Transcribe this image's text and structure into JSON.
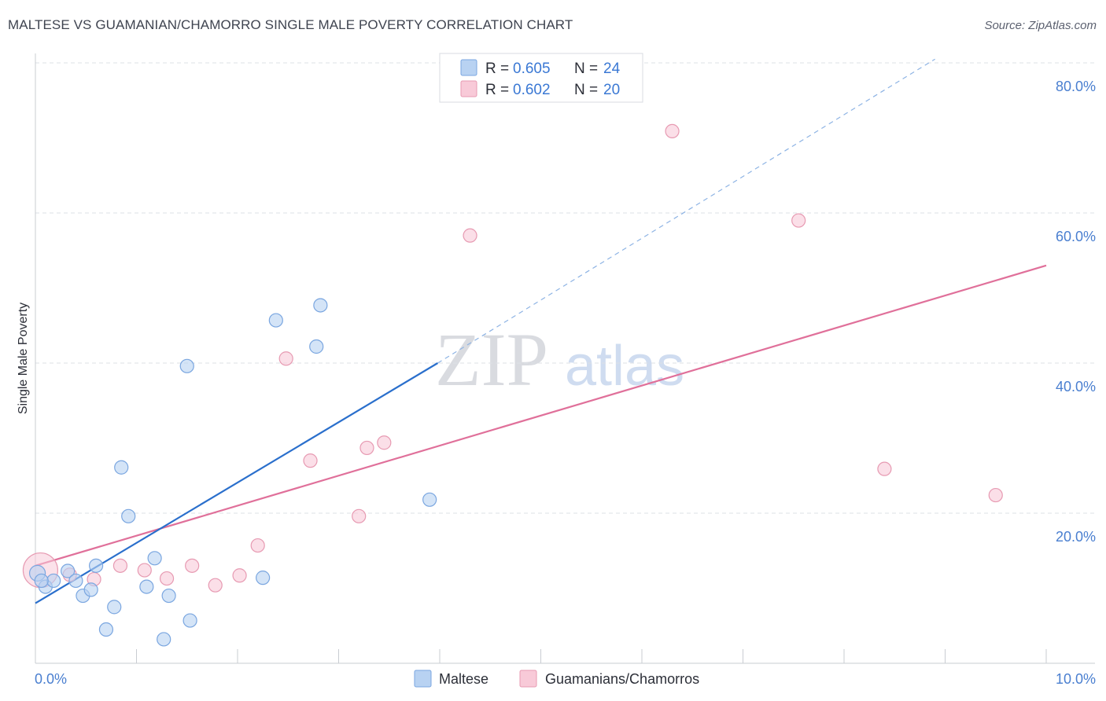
{
  "header": {
    "title": "MALTESE VS GUAMANIAN/CHAMORRO SINGLE MALE POVERTY CORRELATION CHART",
    "source": "Source: ZipAtlas.com"
  },
  "watermark": {
    "zip": "ZIP",
    "atlas": "atlas"
  },
  "colors": {
    "blue_fill": "#b8d2f2",
    "blue_stroke": "#7aa6e0",
    "blue_line": "#2a6fcc",
    "pink_fill": "#f8cad8",
    "pink_stroke": "#e79ab2",
    "pink_line": "#e0709a",
    "grid": "#dde0e6",
    "tick_label": "#4a7fd0"
  },
  "chart_data": {
    "type": "scatter",
    "title": "MALTESE VS GUAMANIAN/CHAMORRO SINGLE MALE POVERTY CORRELATION CHART",
    "xlabel": "",
    "ylabel": "Single Male Poverty",
    "xlim": [
      0,
      10
    ],
    "ylim": [
      -2,
      84
    ],
    "x_tick_labels": [
      {
        "value": 0,
        "label": "0.0%"
      },
      {
        "value": 10,
        "label": "10.0%"
      }
    ],
    "y_tick_labels": [
      {
        "value": 20,
        "label": "20.0%"
      },
      {
        "value": 40,
        "label": "40.0%"
      },
      {
        "value": 60,
        "label": "60.0%"
      },
      {
        "value": 80,
        "label": "80.0%"
      }
    ],
    "legend": [
      {
        "series": "Maltese",
        "r_label": "R =",
        "r_value": "0.605",
        "n_label": "N =",
        "n_value": "24"
      },
      {
        "series": "Guamanians/Chamorros",
        "r_label": "R =",
        "r_value": "0.602",
        "n_label": "N =",
        "n_value": "20"
      }
    ],
    "series": [
      {
        "name": "Maltese",
        "points": [
          [
            0.02,
            12.0
          ],
          [
            0.1,
            10.2
          ],
          [
            0.18,
            11.0
          ],
          [
            0.32,
            12.3
          ],
          [
            0.4,
            11.0
          ],
          [
            0.47,
            9.0
          ],
          [
            0.55,
            9.8
          ],
          [
            0.6,
            13.0
          ],
          [
            0.7,
            4.5
          ],
          [
            0.78,
            7.5
          ],
          [
            0.85,
            26.1
          ],
          [
            0.92,
            19.6
          ],
          [
            1.1,
            10.2
          ],
          [
            1.18,
            14.0
          ],
          [
            1.27,
            3.2
          ],
          [
            1.32,
            9.0
          ],
          [
            1.5,
            39.6
          ],
          [
            1.53,
            5.7
          ],
          [
            2.25,
            11.4
          ],
          [
            2.38,
            45.7
          ],
          [
            2.78,
            42.2
          ],
          [
            2.82,
            47.7
          ],
          [
            3.9,
            21.8
          ],
          [
            0.06,
            11.0
          ]
        ],
        "trendline": {
          "x": [
            0.0,
            3.98
          ],
          "y": [
            8.0,
            40.0
          ]
        },
        "trendline_extension": {
          "x": [
            3.98,
            8.9
          ],
          "y": [
            40.0,
            80.5
          ]
        }
      },
      {
        "name": "Guamanians/Chamorros",
        "points": [
          [
            0.05,
            12.4
          ],
          [
            0.34,
            11.8
          ],
          [
            0.58,
            11.2
          ],
          [
            0.84,
            13.0
          ],
          [
            1.08,
            12.4
          ],
          [
            1.3,
            11.3
          ],
          [
            1.55,
            13.0
          ],
          [
            1.78,
            10.4
          ],
          [
            2.02,
            11.7
          ],
          [
            2.2,
            15.7
          ],
          [
            2.48,
            40.6
          ],
          [
            2.72,
            27.0
          ],
          [
            3.2,
            19.6
          ],
          [
            3.28,
            28.7
          ],
          [
            3.45,
            29.4
          ],
          [
            4.3,
            57.0
          ],
          [
            6.3,
            70.9
          ],
          [
            7.55,
            59.0
          ],
          [
            8.4,
            25.9
          ],
          [
            9.5,
            22.4
          ]
        ],
        "trendline": {
          "x": [
            0.0,
            10.0
          ],
          "y": [
            13.0,
            53.0
          ]
        }
      }
    ]
  }
}
